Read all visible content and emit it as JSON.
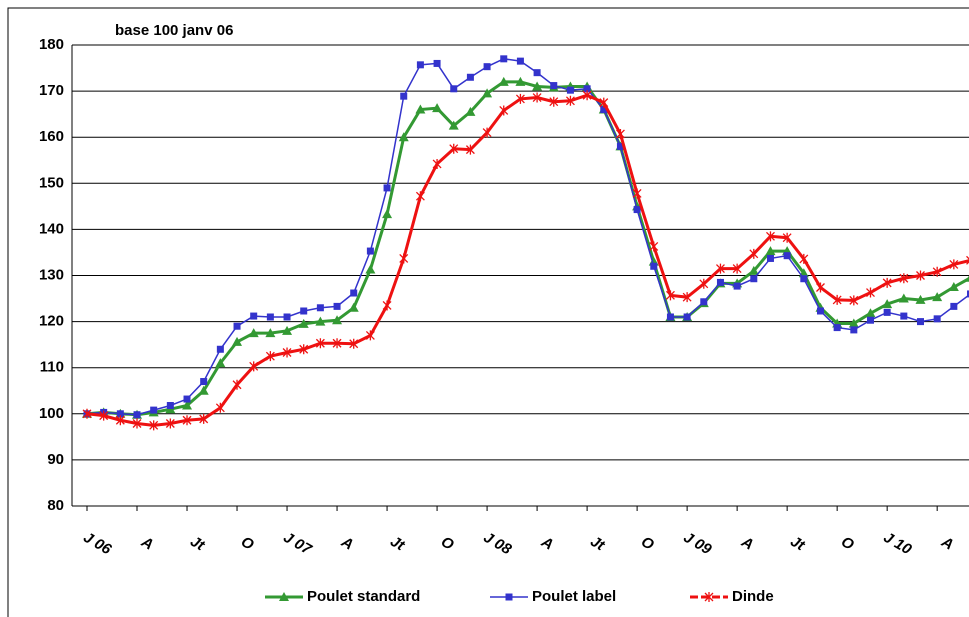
{
  "chart_data": {
    "type": "line",
    "title": "base 100 janv 06",
    "categories": [
      "J 06",
      null,
      null,
      "A",
      null,
      null,
      "Jt",
      null,
      null,
      "O",
      null,
      null,
      "J 07",
      null,
      null,
      "A",
      null,
      null,
      "Jt",
      null,
      null,
      "O",
      null,
      null,
      "J 08",
      null,
      null,
      "A",
      null,
      null,
      "Jt",
      null,
      null,
      "O",
      null,
      null,
      "J 09",
      null,
      null,
      "A",
      null,
      null,
      "Jt",
      null,
      null,
      "O",
      null,
      null,
      "J 10",
      null,
      null,
      "A",
      null,
      null
    ],
    "series": [
      {
        "name": "Poulet standard",
        "color": "#339933",
        "marker": "triangle",
        "values": [
          100,
          100.3,
          100,
          99.8,
          100.3,
          101,
          101.8,
          105,
          111,
          115.6,
          117.5,
          117.5,
          118,
          119.5,
          120,
          120.3,
          123,
          131.3,
          143.3,
          160,
          166,
          166.3,
          162.5,
          165.5,
          169.5,
          172,
          172,
          171,
          170.8,
          171,
          171,
          166,
          158,
          145,
          133,
          121,
          121,
          124,
          128.3,
          128.3,
          131,
          135.3,
          135.3,
          130.5,
          123,
          119.6,
          119.6,
          121.8,
          123.8,
          125,
          124.7,
          125.3,
          127.5,
          129.5
        ]
      },
      {
        "name": "Poulet label",
        "color": "#3333cc",
        "marker": "square",
        "values": [
          100,
          100.3,
          100,
          99.8,
          100.8,
          101.8,
          103.2,
          107,
          114,
          119,
          121.2,
          121,
          121,
          122.3,
          123,
          123.3,
          126.2,
          135.3,
          149,
          168.9,
          175.7,
          176,
          170.5,
          173,
          175.3,
          177,
          176.5,
          174,
          171.2,
          170.2,
          170.5,
          166,
          158,
          144.3,
          132,
          121,
          121,
          124.3,
          128.5,
          127.7,
          129.3,
          133.7,
          134.3,
          129.3,
          122.3,
          118.7,
          118.2,
          120.3,
          122,
          121.2,
          120,
          120.6,
          123.3,
          126
        ]
      },
      {
        "name": "Dinde",
        "color": "#ee1111",
        "marker": "x",
        "values": [
          100,
          99.6,
          98.6,
          97.9,
          97.5,
          97.9,
          98.6,
          98.9,
          101.3,
          106.3,
          110.3,
          112.5,
          113.3,
          114,
          115.3,
          115.3,
          115.2,
          117,
          123.5,
          133.7,
          147.2,
          154.2,
          157.5,
          157.3,
          161,
          165.8,
          168.3,
          168.6,
          167.7,
          167.9,
          169.1,
          167.5,
          160.7,
          147.8,
          136.3,
          125.7,
          125.3,
          128.2,
          131.5,
          131.5,
          134.7,
          138.5,
          138.2,
          133.6,
          127.4,
          124.7,
          124.6,
          126.3,
          128.4,
          129.4,
          130,
          130.8,
          132.4,
          133.3
        ]
      }
    ],
    "ylim": [
      80,
      180
    ],
    "yticks": [
      80,
      90,
      100,
      110,
      120,
      130,
      140,
      150,
      160,
      170,
      180
    ],
    "grid": true,
    "legend": "bottom"
  }
}
